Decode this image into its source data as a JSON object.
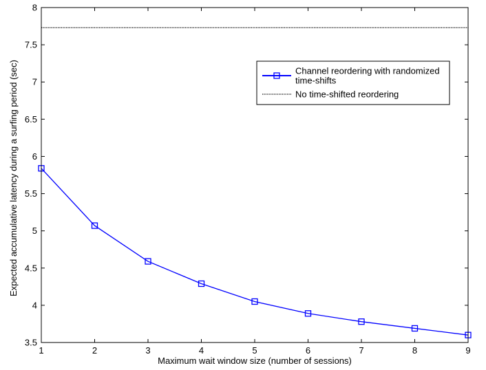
{
  "chart_data": {
    "type": "line",
    "title": "",
    "xlabel": "Maximum wait window size (number of sessions)",
    "ylabel": "Expected accumulative latency during a surfing period (sec)",
    "xlim": [
      1,
      9
    ],
    "ylim": [
      3.5,
      8
    ],
    "x_ticks": [
      "1",
      "2",
      "3",
      "4",
      "5",
      "6",
      "7",
      "8",
      "9"
    ],
    "y_ticks": [
      "3.5",
      "4",
      "4.5",
      "5",
      "5.5",
      "6",
      "6.5",
      "7",
      "7.5",
      "8"
    ],
    "grid": false,
    "legend_position": "top-right",
    "series": [
      {
        "name": "Channel reordering with randomized time-shifts",
        "legend_lines": [
          "Channel reordering with randomized",
          "time-shifts"
        ],
        "color": "#0000ff",
        "line_style": "solid",
        "marker": "square",
        "x": [
          1,
          2,
          3,
          4,
          5,
          6,
          7,
          8,
          9
        ],
        "y": [
          5.84,
          5.07,
          4.59,
          4.29,
          4.05,
          3.89,
          3.78,
          3.69,
          3.6
        ]
      },
      {
        "name": "No time-shifted reordering",
        "legend_lines": [
          "No time-shifted reordering"
        ],
        "color": "#000000",
        "line_style": "dotted",
        "marker": "none",
        "x": [
          1,
          9
        ],
        "y": [
          7.73,
          7.73
        ]
      }
    ]
  }
}
